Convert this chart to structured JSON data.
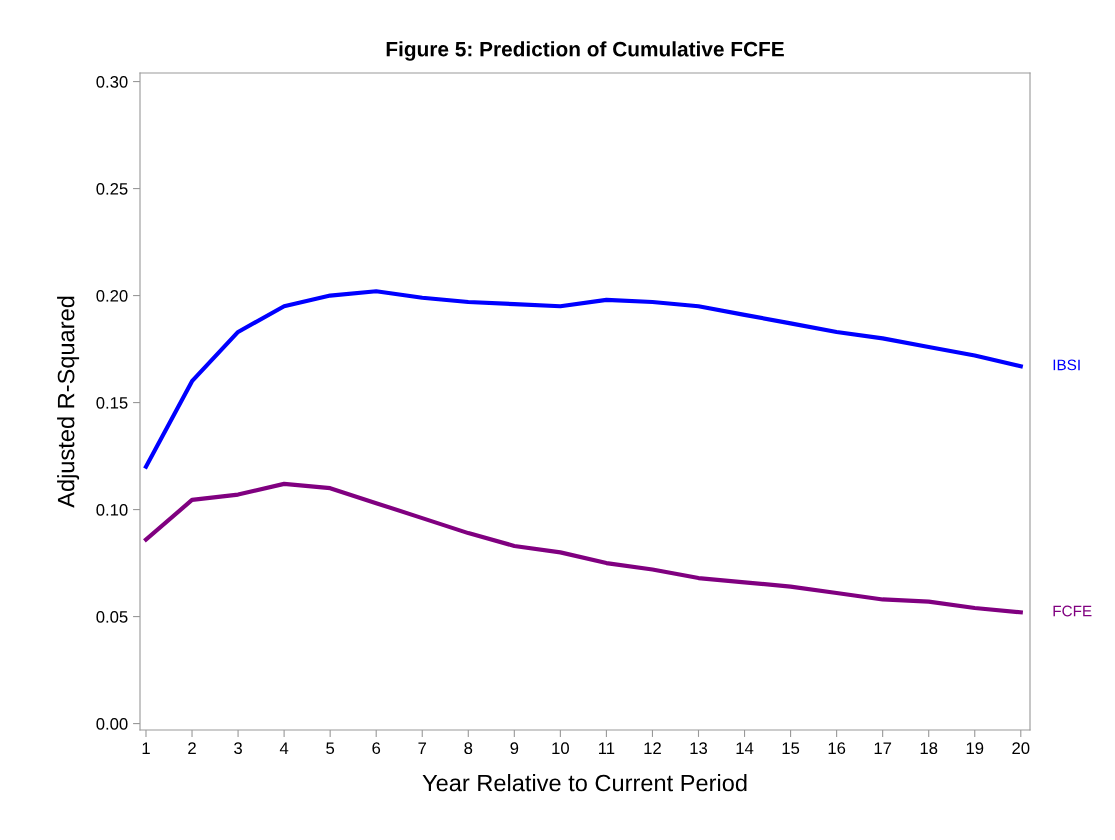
{
  "chart_data": {
    "type": "line",
    "title": "Figure 5: Prediction of Cumulative FCFE",
    "xlabel": "Year Relative to Current Period",
    "ylabel": "Adjusted R-Squared",
    "x": [
      1,
      2,
      3,
      4,
      5,
      6,
      7,
      8,
      9,
      10,
      11,
      12,
      13,
      14,
      15,
      16,
      17,
      18,
      19,
      20
    ],
    "series": [
      {
        "name": "IBSI",
        "color": "#0000ff",
        "values": [
          0.12,
          0.16,
          0.183,
          0.195,
          0.2,
          0.202,
          0.199,
          0.197,
          0.196,
          0.195,
          0.198,
          0.197,
          0.195,
          0.191,
          0.187,
          0.183,
          0.18,
          0.176,
          0.172,
          0.167
        ]
      },
      {
        "name": "FCFE",
        "color": "#800080",
        "values": [
          0.086,
          0.1045,
          0.107,
          0.112,
          0.11,
          0.103,
          0.096,
          0.089,
          0.083,
          0.08,
          0.075,
          0.072,
          0.068,
          0.066,
          0.064,
          0.061,
          0.058,
          0.057,
          0.054,
          0.052
        ]
      }
    ],
    "xlim": [
      0.87,
      20.2
    ],
    "xticks": [
      1,
      2,
      3,
      4,
      5,
      6,
      7,
      8,
      9,
      10,
      11,
      12,
      13,
      14,
      15,
      16,
      17,
      18,
      19,
      20
    ],
    "ylim": [
      -0.003,
      0.304
    ],
    "yticks": [
      {
        "value": 0,
        "label": "0.00"
      },
      {
        "value": 0.05,
        "label": "0.05"
      },
      {
        "value": 0.1,
        "label": "0.10"
      },
      {
        "value": 0.15,
        "label": "0.15"
      },
      {
        "value": 0.2,
        "label": "0.20"
      },
      {
        "value": 0.25,
        "label": "0.25"
      },
      {
        "value": 0.3,
        "label": "0.30"
      }
    ],
    "grid": false,
    "legend": false,
    "marker": "none",
    "line_style": "solid"
  }
}
